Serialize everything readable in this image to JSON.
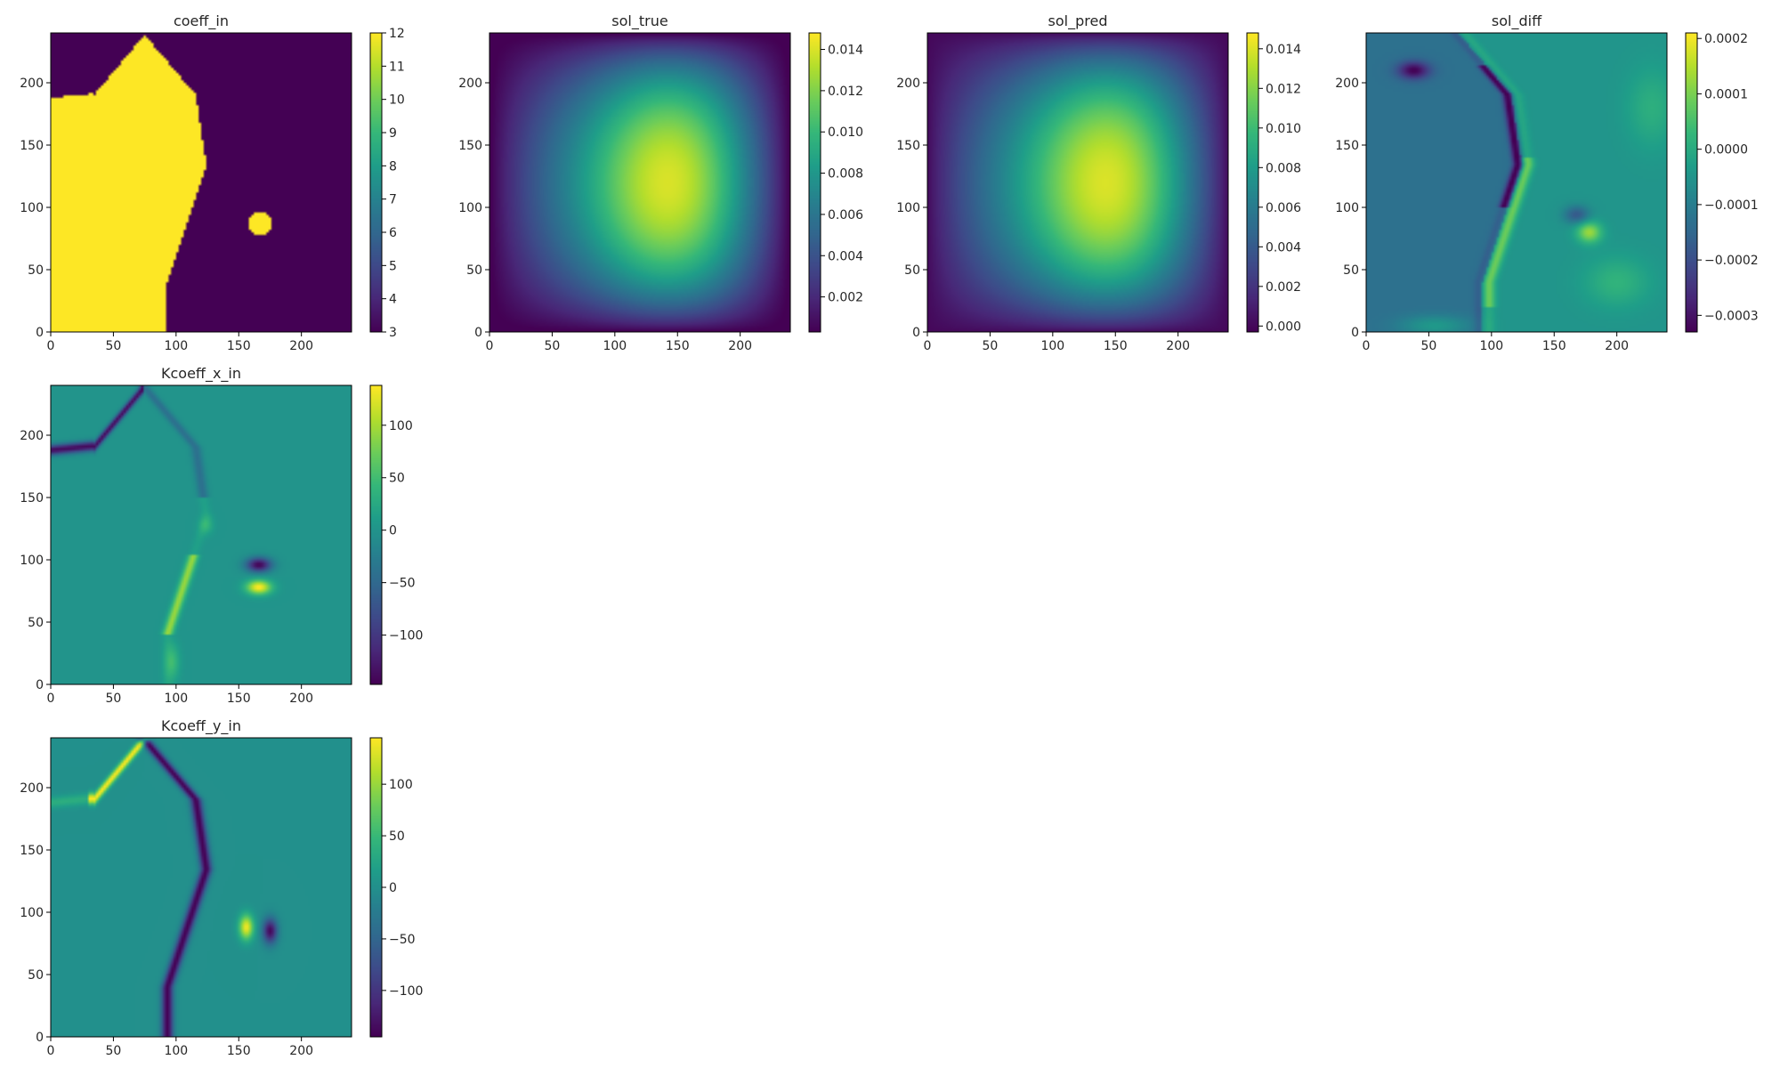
{
  "figure": {
    "background": "#ffffff",
    "colormap": "viridis"
  },
  "chart_data": [
    {
      "type": "heatmap",
      "id": "coeff_in",
      "title": "coeff_in",
      "xlabel": "",
      "ylabel": "",
      "xlim": [
        0,
        240
      ],
      "ylim": [
        0,
        240
      ],
      "xticks": [
        "0",
        "50",
        "100",
        "150",
        "200"
      ],
      "yticks": [
        "0",
        "50",
        "100",
        "150",
        "200"
      ],
      "colorbar": {
        "range": [
          3,
          12
        ],
        "ticks": [
          "3",
          "4",
          "5",
          "6",
          "7",
          "8",
          "9",
          "10",
          "11",
          "12"
        ]
      },
      "field": "coeff"
    },
    {
      "type": "heatmap",
      "id": "sol_true",
      "title": "sol_true",
      "xlabel": "",
      "ylabel": "",
      "xlim": [
        0,
        240
      ],
      "ylim": [
        0,
        240
      ],
      "xticks": [
        "0",
        "50",
        "100",
        "150",
        "200"
      ],
      "yticks": [
        "0",
        "50",
        "100",
        "150",
        "200"
      ],
      "colorbar": {
        "range": [
          0.0003,
          0.0148
        ],
        "ticks": [
          "0.002",
          "0.004",
          "0.006",
          "0.008",
          "0.010",
          "0.012",
          "0.014"
        ]
      },
      "field": "sol"
    },
    {
      "type": "heatmap",
      "id": "sol_pred",
      "title": "sol_pred",
      "xlabel": "",
      "ylabel": "",
      "xlim": [
        0,
        240
      ],
      "ylim": [
        0,
        240
      ],
      "xticks": [
        "0",
        "50",
        "100",
        "150",
        "200"
      ],
      "yticks": [
        "0",
        "50",
        "100",
        "150",
        "200"
      ],
      "colorbar": {
        "range": [
          -0.0003,
          0.0148
        ],
        "ticks": [
          "0.000",
          "0.002",
          "0.004",
          "0.006",
          "0.008",
          "0.010",
          "0.012",
          "0.014"
        ]
      },
      "field": "sol"
    },
    {
      "type": "heatmap",
      "id": "sol_diff",
      "title": "sol_diff",
      "xlabel": "",
      "ylabel": "",
      "xlim": [
        0,
        240
      ],
      "ylim": [
        0,
        240
      ],
      "xticks": [
        "0",
        "50",
        "100",
        "150",
        "200"
      ],
      "yticks": [
        "0",
        "50",
        "100",
        "150",
        "200"
      ],
      "colorbar": {
        "range": [
          -0.00033,
          0.00021
        ],
        "ticks": [
          "−0.0003",
          "−0.0002",
          "−0.0001",
          "0.0000",
          "0.0001",
          "0.0002"
        ]
      },
      "field": "diff"
    },
    {
      "type": "heatmap",
      "id": "Kcoeff_x_in",
      "title": "Kcoeff_x_in",
      "xlabel": "",
      "ylabel": "",
      "xlim": [
        0,
        240
      ],
      "ylim": [
        0,
        240
      ],
      "xticks": [
        "0",
        "50",
        "100",
        "150",
        "200"
      ],
      "yticks": [
        "0",
        "50",
        "100",
        "150",
        "200"
      ],
      "colorbar": {
        "range": [
          -147,
          138
        ],
        "ticks": [
          "−100",
          "−50",
          "0",
          "50",
          "100"
        ]
      },
      "field": "kx"
    },
    {
      "type": "heatmap",
      "id": "Kcoeff_y_in",
      "title": "Kcoeff_y_in",
      "xlabel": "",
      "ylabel": "",
      "xlim": [
        0,
        240
      ],
      "ylim": [
        0,
        240
      ],
      "xticks": [
        "0",
        "50",
        "100",
        "150",
        "200"
      ],
      "yticks": [
        "0",
        "50",
        "100",
        "150",
        "200"
      ],
      "colorbar": {
        "range": [
          -145,
          145
        ],
        "ticks": [
          "−100",
          "−50",
          "0",
          "50",
          "100"
        ]
      },
      "field": "ky"
    }
  ]
}
